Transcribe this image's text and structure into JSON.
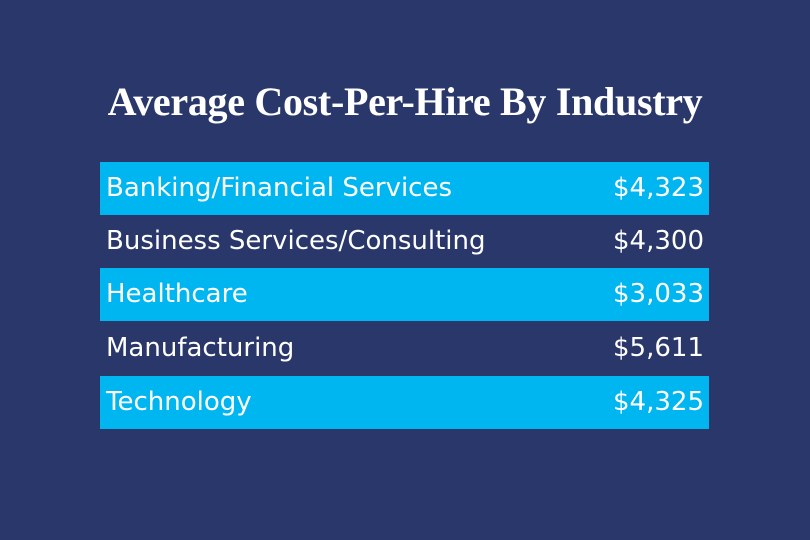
{
  "title": "Average Cost-Per-Hire By Industry",
  "table": {
    "rows": [
      [
        "Banking/Financial Services",
        "$4,323"
      ],
      [
        "Business Services/Consulting",
        "$4,300"
      ],
      [
        "Healthcare",
        "$3,033"
      ],
      [
        "Manufacturing",
        "$5,611"
      ],
      [
        "Technology",
        "$4,325"
      ]
    ]
  }
}
